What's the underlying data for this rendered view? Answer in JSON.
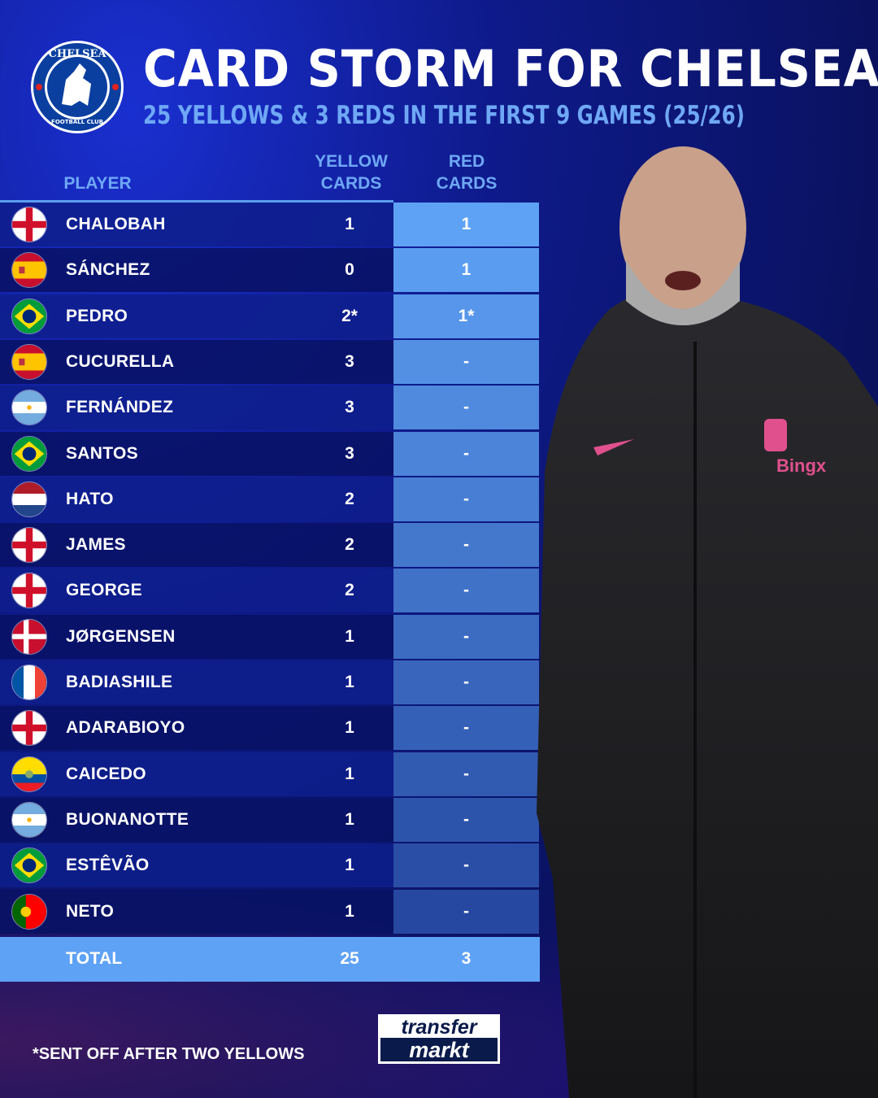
{
  "header": {
    "title": "CARD STORM FOR CHELSEA",
    "subtitle": "25 YELLOWS & 3 REDS IN THE FIRST 9 GAMES (25/26)",
    "crest_text": "CHELSEA FOOTBALL CLUB"
  },
  "colors": {
    "background": "#0e1a8a",
    "accent": "#6fa8f5",
    "red_column": "#5ea2f5",
    "total_row": "#5ea2f5"
  },
  "chart_data": {
    "type": "table",
    "columns": [
      "PLAYER",
      "YELLOW CARDS",
      "RED CARDS"
    ],
    "rows": [
      {
        "player": "CHALOBAH",
        "flag": "england",
        "yellow": "1",
        "red": "1"
      },
      {
        "player": "SÁNCHEZ",
        "flag": "spain",
        "yellow": "0",
        "red": "1"
      },
      {
        "player": "PEDRO",
        "flag": "brazil",
        "yellow": "2*",
        "red": "1*"
      },
      {
        "player": "CUCURELLA",
        "flag": "spain",
        "yellow": "3",
        "red": "-"
      },
      {
        "player": "FERNÁNDEZ",
        "flag": "argentina",
        "yellow": "3",
        "red": "-"
      },
      {
        "player": "SANTOS",
        "flag": "brazil",
        "yellow": "3",
        "red": "-"
      },
      {
        "player": "HATO",
        "flag": "netherlands",
        "yellow": "2",
        "red": "-"
      },
      {
        "player": "JAMES",
        "flag": "england",
        "yellow": "2",
        "red": "-"
      },
      {
        "player": "GEORGE",
        "flag": "england",
        "yellow": "2",
        "red": "-"
      },
      {
        "player": "JØRGENSEN",
        "flag": "denmark",
        "yellow": "1",
        "red": "-"
      },
      {
        "player": "BADIASHILE",
        "flag": "france",
        "yellow": "1",
        "red": "-"
      },
      {
        "player": "ADARABIOYO",
        "flag": "england",
        "yellow": "1",
        "red": "-"
      },
      {
        "player": "CAICEDO",
        "flag": "ecuador",
        "yellow": "1",
        "red": "-"
      },
      {
        "player": "BUONANOTTE",
        "flag": "argentina",
        "yellow": "1",
        "red": "-"
      },
      {
        "player": "ESTÊVÃO",
        "flag": "brazil",
        "yellow": "1",
        "red": "-"
      },
      {
        "player": "NETO",
        "flag": "portugal",
        "yellow": "1",
        "red": "-"
      }
    ],
    "total": {
      "label": "TOTAL",
      "yellow": "25",
      "red": "3"
    }
  },
  "table": {
    "header_player": "PLAYER",
    "header_yellow_1": "YELLOW",
    "header_yellow_2": "CARDS",
    "header_red_1": "RED",
    "header_red_2": "CARDS"
  },
  "footer": {
    "note": "*SENT OFF AFTER TWO YELLOWS",
    "logo_line1": "transfer",
    "logo_line2": "markt"
  },
  "photo": {
    "sponsor": "Bingx"
  }
}
